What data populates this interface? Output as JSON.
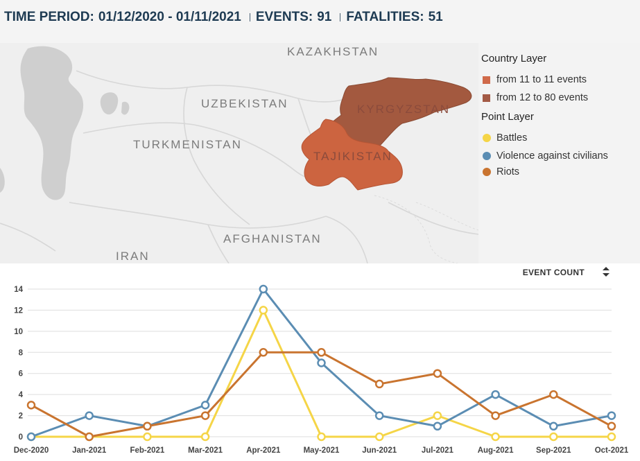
{
  "header": {
    "time_period_label": "TIME PERIOD:",
    "time_period_value": "01/12/2020 - 01/11/2021",
    "events_label": "EVENTS:",
    "events_value": "91",
    "fatalities_label": "FATALITIES:",
    "fatalities_value": "51"
  },
  "map": {
    "labels": {
      "kazakhstan": "KAZAKHSTAN",
      "uzbekistan": "UZBEKISTAN",
      "turkmenistan": "TURKMENISTAN",
      "kyrgyzstan": "KYRGYZSTAN",
      "tajikistan": "TAJIKISTAN",
      "afghanistan": "AFGHANISTAN",
      "iran": "IRAN"
    },
    "colors": {
      "kyrgyzstan": "#a3593f",
      "tajikistan": "#cc6440",
      "water": "#cfcfcf",
      "land": "#efefef"
    }
  },
  "legend": {
    "country_layer_title": "Country Layer",
    "country_items": [
      {
        "label": "from 11 to 11 events",
        "color": "#d06a4a"
      },
      {
        "label": "from 12 to 80 events",
        "color": "#a35a45"
      }
    ],
    "point_layer_title": "Point Layer",
    "point_items": [
      {
        "label": "Battles",
        "color": "#f5d547"
      },
      {
        "label": "Violence against civilians",
        "color": "#5b8db3"
      },
      {
        "label": "Riots",
        "color": "#c9742f"
      }
    ]
  },
  "chart_controls": {
    "metric_label": "EVENT COUNT",
    "sort_icon": "sort-updown-icon"
  },
  "chart_data": {
    "type": "line",
    "categories": [
      "Dec-2020",
      "Jan-2021",
      "Feb-2021",
      "Mar-2021",
      "Apr-2021",
      "May-2021",
      "Jun-2021",
      "Jul-2021",
      "Aug-2021",
      "Sep-2021",
      "Oct-2021"
    ],
    "ylim": [
      0,
      14
    ],
    "yticks": [
      0,
      2,
      4,
      6,
      8,
      10,
      12,
      14
    ],
    "grid": true,
    "series": [
      {
        "name": "Battles",
        "color": "#f5d547",
        "values": [
          0,
          0,
          0,
          0,
          12,
          0,
          0,
          2,
          0,
          0,
          0
        ]
      },
      {
        "name": "Violence against civilians",
        "color": "#5b8db3",
        "values": [
          0,
          2,
          1,
          3,
          14,
          7,
          2,
          1,
          4,
          1,
          2
        ]
      },
      {
        "name": "Riots",
        "color": "#c9742f",
        "values": [
          3,
          0,
          1,
          2,
          8,
          8,
          5,
          6,
          2,
          4,
          1
        ]
      }
    ]
  }
}
